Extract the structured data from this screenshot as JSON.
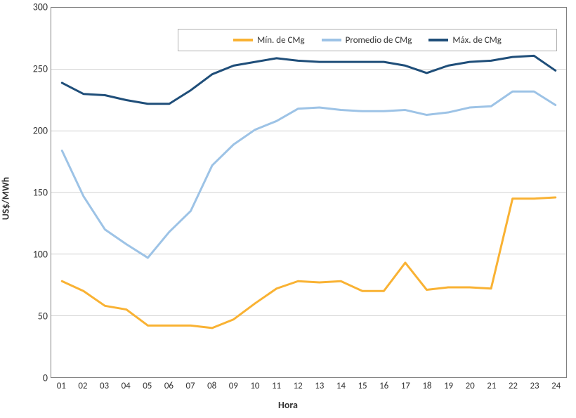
{
  "chart": {
    "type": "line",
    "ylabel": "US$/MWh",
    "xlabel": "Hora",
    "ylim": [
      0,
      300
    ],
    "ytick_step": 50,
    "yticks": [
      0,
      50,
      100,
      150,
      200,
      250,
      300
    ],
    "categories": [
      "01",
      "02",
      "03",
      "04",
      "05",
      "06",
      "07",
      "08",
      "09",
      "10",
      "11",
      "12",
      "13",
      "14",
      "15",
      "16",
      "17",
      "18",
      "19",
      "20",
      "21",
      "22",
      "23",
      "24"
    ],
    "background_color": "#ffffff",
    "grid_color": "#d0d0d0",
    "border_color": "#808080",
    "label_fontsize": 14,
    "tick_fontsize": 13,
    "line_width": 3,
    "legend": {
      "position": "top",
      "border_color": "#b0b0b0",
      "background_color": "#ffffff",
      "fontsize": 13
    },
    "series": [
      {
        "name": "min",
        "label": "Mín. de CMg",
        "color": "#f9b233",
        "values": [
          78,
          70,
          58,
          55,
          42,
          42,
          42,
          40,
          47,
          60,
          72,
          78,
          77,
          78,
          70,
          70,
          93,
          71,
          73,
          73,
          72,
          145,
          145,
          146
        ]
      },
      {
        "name": "avg",
        "label": "Promedio de CMg",
        "color": "#9dc3e6",
        "values": [
          184,
          147,
          120,
          108,
          97,
          118,
          135,
          172,
          189,
          201,
          208,
          218,
          219,
          217,
          216,
          216,
          217,
          213,
          215,
          219,
          220,
          232,
          232,
          221
        ]
      },
      {
        "name": "max",
        "label": "Máx. de CMg",
        "color": "#1f4e79",
        "values": [
          239,
          230,
          229,
          225,
          222,
          222,
          233,
          246,
          253,
          256,
          259,
          257,
          256,
          256,
          256,
          256,
          253,
          247,
          253,
          256,
          257,
          260,
          261,
          249
        ]
      }
    ]
  }
}
